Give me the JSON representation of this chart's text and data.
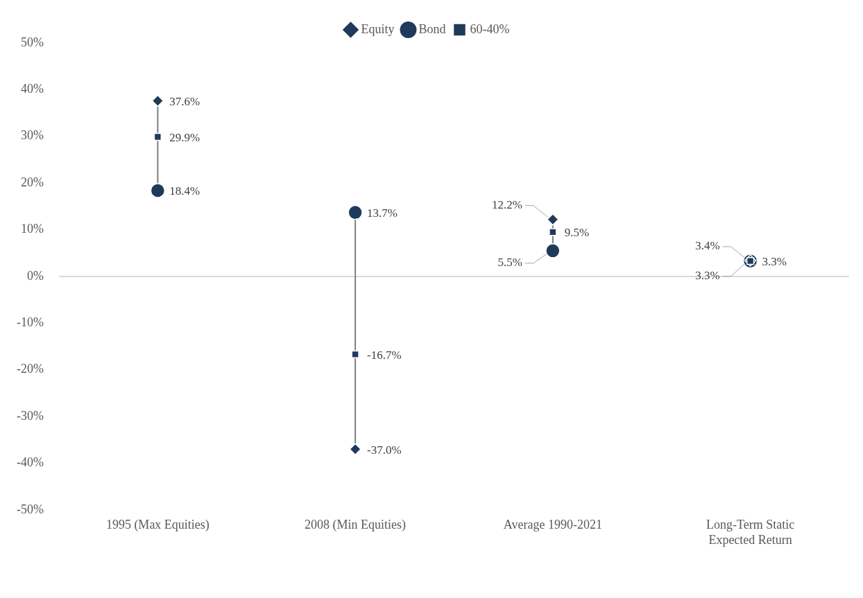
{
  "chart_data": {
    "type": "scatter",
    "categories": [
      "1995 (Max Equities)",
      "2008 (Min Equities)",
      "Average 1990-2021",
      "Long-Term Static Expected Return"
    ],
    "series": [
      {
        "name": "Equity",
        "color": "#1f3a5a",
        "marker": "diamond",
        "values": [
          37.6,
          -37.0,
          12.2,
          3.4
        ],
        "value_labels": [
          "37.6%",
          "-37.0%",
          "12.2%",
          "3.4%"
        ]
      },
      {
        "name": "Bond",
        "color": "#1f3a5a",
        "marker": "circle",
        "values": [
          18.4,
          13.7,
          5.5,
          3.3
        ],
        "value_labels": [
          "18.4%",
          "13.7%",
          "5.5%",
          "3.3%"
        ]
      },
      {
        "name": "60-40%",
        "color": "#1f3a5a",
        "values": [
          29.9,
          -16.7,
          9.5,
          3.3
        ],
        "value_labels": [
          "29.9%",
          "-16.7%",
          "9.5%",
          "3.3%"
        ]
      }
    ],
    "ylim": [
      -50,
      50
    ],
    "yticks": [
      {
        "value": -50,
        "label": "-50%"
      },
      {
        "value": -40,
        "label": "-40%"
      },
      {
        "value": -30,
        "label": "-30%"
      },
      {
        "value": -20,
        "label": "-20%"
      },
      {
        "value": -10,
        "label": "-10%"
      },
      {
        "value": 0,
        "label": "0%"
      },
      {
        "value": 10,
        "label": "10%"
      },
      {
        "value": 20,
        "label": "20%"
      },
      {
        "value": 30,
        "label": "30%"
      },
      {
        "value": 40,
        "label": "40%"
      },
      {
        "value": 50,
        "label": "50%"
      }
    ],
    "ref_lines": [
      {
        "axis": "y",
        "value": 0,
        "color": "#d9d9d9"
      }
    ],
    "grid": false,
    "legend": "top"
  }
}
